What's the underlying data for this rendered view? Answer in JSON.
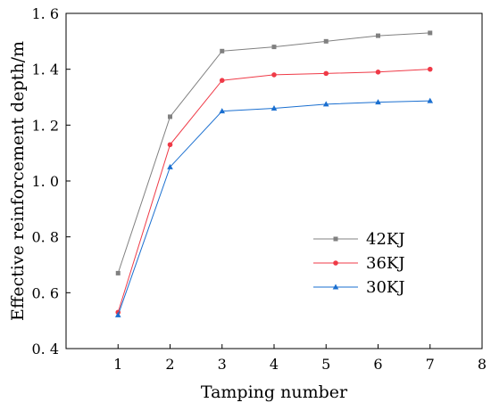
{
  "chart_data": {
    "type": "line",
    "title": "",
    "xlabel": "Tamping number",
    "ylabel": "Effective reinforcement depth/m",
    "xlim": [
      0,
      8
    ],
    "ylim": [
      0.4,
      1.6
    ],
    "x_ticks": [
      1,
      2,
      3,
      4,
      5,
      6,
      7,
      8
    ],
    "y_ticks": [
      0.4,
      0.6,
      0.8,
      1.0,
      1.2,
      1.4,
      1.6
    ],
    "y_tick_labels": [
      "0. 4",
      "0. 6",
      "0. 8",
      "1. 0",
      "1. 2",
      "1. 4",
      "1. 6"
    ],
    "x": [
      1,
      2,
      3,
      4,
      5,
      6,
      7
    ],
    "grid": false,
    "legend_position": "lower-right",
    "series": [
      {
        "name": "42KJ",
        "color": "#808080",
        "marker": "square",
        "values": [
          0.67,
          1.23,
          1.465,
          1.48,
          1.5,
          1.52,
          1.53
        ]
      },
      {
        "name": "36KJ",
        "color": "#ef3a47",
        "marker": "circle",
        "values": [
          0.53,
          1.13,
          1.36,
          1.38,
          1.385,
          1.39,
          1.4
        ]
      },
      {
        "name": "30KJ",
        "color": "#1a6fd0",
        "marker": "triangle",
        "values": [
          0.52,
          1.05,
          1.25,
          1.26,
          1.275,
          1.282,
          1.287
        ]
      }
    ]
  }
}
